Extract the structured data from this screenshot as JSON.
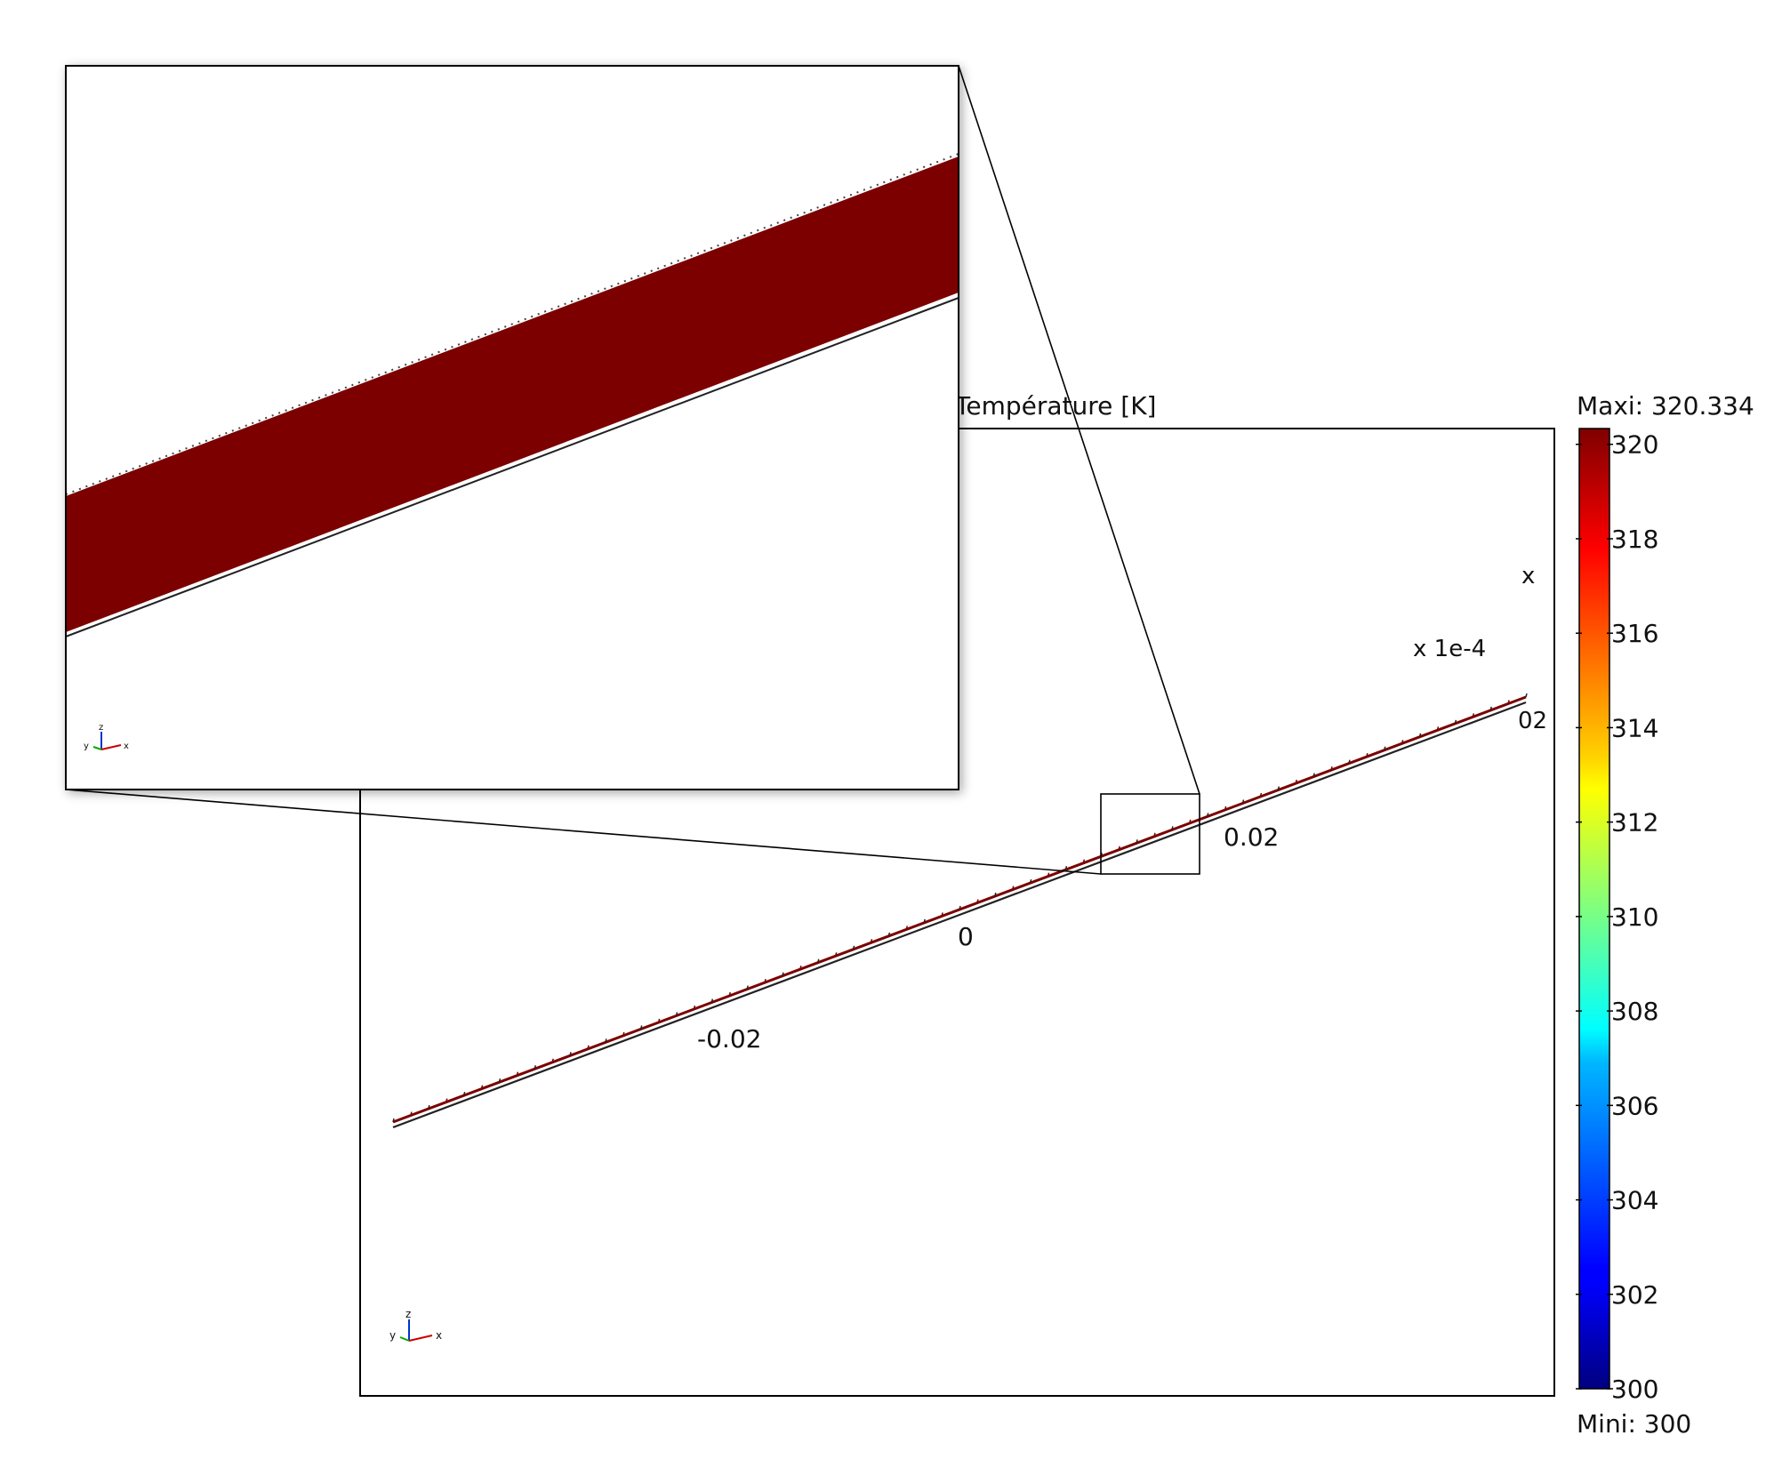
{
  "chart_data": {
    "type": "surface-plot",
    "title": "Température [K]",
    "color_scale": {
      "name": "jet",
      "min_label": "Mini: 300",
      "max_label": "Maxi: 320.334",
      "min": 300,
      "max": 320.334,
      "ticks": [
        "320",
        "318",
        "316",
        "314",
        "312",
        "310",
        "308",
        "306",
        "304",
        "302",
        "300"
      ],
      "tick_values": [
        320,
        318,
        316,
        314,
        312,
        310,
        308,
        306,
        304,
        302,
        300
      ]
    },
    "axis_labels": {
      "x_ticks": [
        "-0.02",
        "0",
        "0.02"
      ],
      "x_tick_values": [
        -0.02,
        0,
        0.02
      ],
      "x_axis_end_label": "x",
      "scale_note": "x 1e-4",
      "overlap_glyph": "02"
    },
    "triad_labels": {
      "x": "x",
      "y": "y",
      "z": "z"
    },
    "main_plot_color": "#7a0000",
    "inset": {
      "description": "zoomed view of the highlighted rectangle",
      "fill_color": "#7b0000",
      "fill_temperature_K": 320.334
    }
  }
}
